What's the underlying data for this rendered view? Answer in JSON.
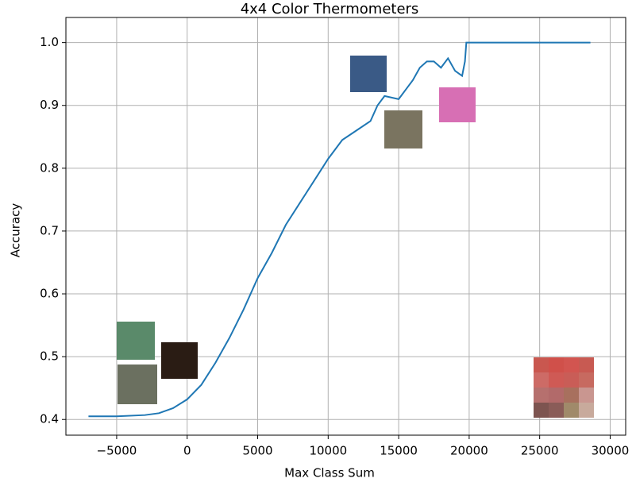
{
  "chart_data": {
    "type": "line",
    "title": "4x4 Color Thermometers",
    "x_label": "Max Class Sum",
    "y_label": "Accuracy",
    "x": [
      -7000,
      -5000,
      -3000,
      -2000,
      -1000,
      0,
      1000,
      2000,
      3000,
      4000,
      5000,
      6000,
      7000,
      8000,
      9000,
      10000,
      11000,
      12000,
      13000,
      13500,
      14000,
      15000,
      15500,
      16000,
      16500,
      17000,
      17500,
      18000,
      18500,
      19000,
      19500,
      19700,
      19800,
      28600
    ],
    "values": [
      0.405,
      0.405,
      0.407,
      0.41,
      0.418,
      0.432,
      0.455,
      0.49,
      0.53,
      0.575,
      0.625,
      0.665,
      0.71,
      0.745,
      0.78,
      0.815,
      0.845,
      0.86,
      0.875,
      0.9,
      0.915,
      0.91,
      0.925,
      0.94,
      0.96,
      0.97,
      0.97,
      0.96,
      0.975,
      0.955,
      0.947,
      0.97,
      1.0,
      1.0
    ],
    "color": "#1f77b4",
    "xlim": [
      -8600,
      31100
    ],
    "ylim": [
      0.375,
      1.04
    ],
    "xticks": [
      {
        "value": -5000,
        "label": "−5000"
      },
      0,
      5000,
      10000,
      15000,
      20000,
      25000,
      30000
    ],
    "yticks": [
      0.4,
      0.5,
      0.6,
      0.7,
      0.8,
      0.9,
      {
        "value": 1,
        "label": "1.0"
      }
    ],
    "grid": true
  }
}
